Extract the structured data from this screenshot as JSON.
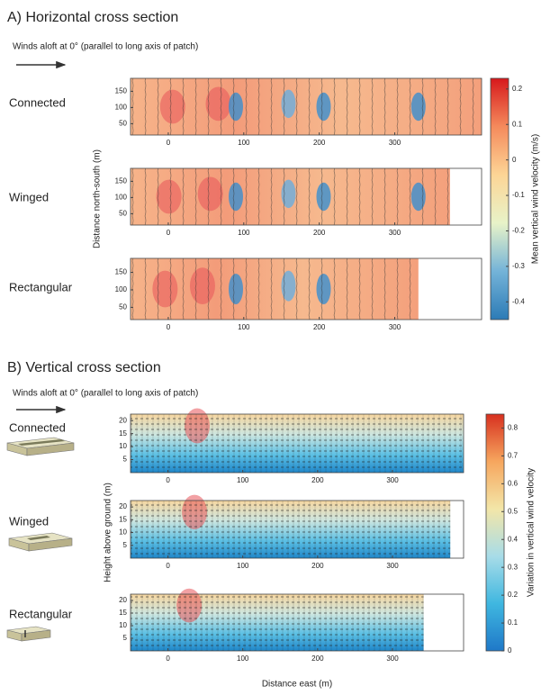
{
  "chart_data": [
    {
      "type": "heatmap",
      "title": "A) Horizontal cross section",
      "subtitle": "Winds aloft at 0° (parallel to long axis of patch)",
      "panels": [
        {
          "label": "Connected"
        },
        {
          "label": "Winged"
        },
        {
          "label": "Rectangular"
        }
      ],
      "ylabel": "Distance north-south (m)",
      "xlim": [
        -50,
        415
      ],
      "xticks": [
        0,
        100,
        200,
        300
      ],
      "ylim": [
        15,
        190
      ],
      "yticks": [
        50,
        100,
        150
      ],
      "colorbar": {
        "label": "Mean vertical wind velocity (m/s)",
        "lim": [
          -0.45,
          0.23
        ],
        "ticks": [
          -0.4,
          -0.3,
          -0.2,
          -0.1,
          0,
          0.1,
          0.2
        ],
        "colors": [
          "#2c7bb6",
          "#74b3d8",
          "#e8f3c8",
          "#fdd596",
          "#f48a5c",
          "#d7191c"
        ]
      }
    },
    {
      "type": "heatmap",
      "title": "B) Vertical cross section",
      "subtitle": "Winds aloft at 0° (parallel to long axis of patch)",
      "panels": [
        {
          "label": "Connected"
        },
        {
          "label": "Winged"
        },
        {
          "label": "Rectangular"
        }
      ],
      "ylabel": "Height above ground (m)",
      "xlabel": "Distance east (m)",
      "xlim": [
        -50,
        395
      ],
      "xticks": [
        0,
        100,
        200,
        300
      ],
      "ylim": [
        0,
        22.5
      ],
      "yticks": [
        5,
        10,
        15,
        20
      ],
      "colorbar": {
        "label": "Variation in vertical wind velocity",
        "lim": [
          0,
          0.85
        ],
        "ticks": [
          0,
          0.1,
          0.2,
          0.3,
          0.4,
          0.5,
          0.6,
          0.7,
          0.8
        ],
        "colors": [
          "#1f78c8",
          "#3fb7e0",
          "#a8dce8",
          "#f3e6a8",
          "#f6a65e",
          "#d7301f"
        ]
      }
    }
  ]
}
